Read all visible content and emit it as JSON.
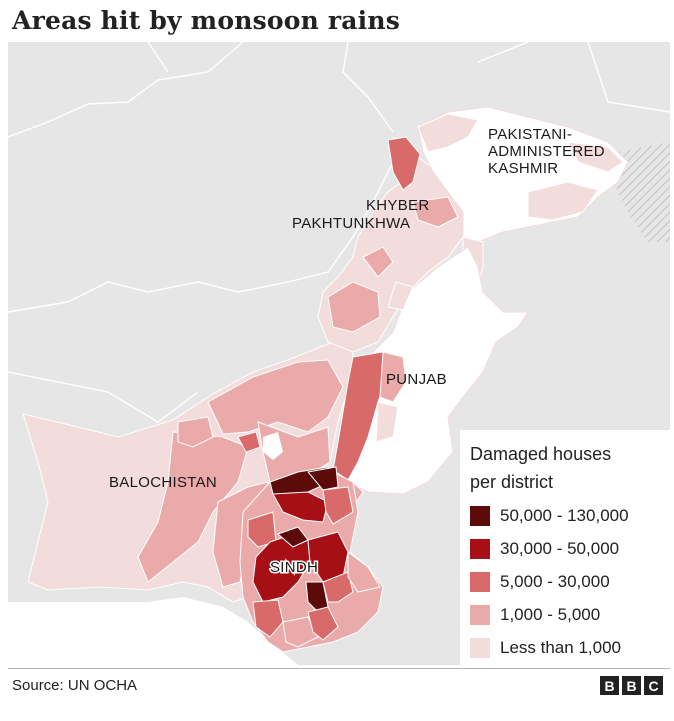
{
  "title": "Areas hit by monsoon rains",
  "regions": {
    "kashmir": [
      "PAKISTANI-",
      "ADMINISTERED",
      "KASHMIR"
    ],
    "khyber": [
      "KHYBER",
      "PAKHTUNKHWA"
    ],
    "punjab": "PUNJAB",
    "balochistan": "BALOCHISTAN",
    "sindh": "SINDH"
  },
  "legend": {
    "title_line1": "Damaged houses",
    "title_line2": "per district",
    "items": [
      {
        "label": "50,000 - 130,000",
        "color": "#5c0a0a"
      },
      {
        "label": "30,000 - 50,000",
        "color": "#a50f15"
      },
      {
        "label": "5,000 - 30,000",
        "color": "#d86a6a"
      },
      {
        "label": "1,000 - 5,000",
        "color": "#ebaaaa"
      },
      {
        "label": "Less than 1,000",
        "color": "#f3dcdc"
      }
    ]
  },
  "colors": {
    "background_land": "#e6e6e6",
    "sea": "#ffffff",
    "no_data": "#ffffff"
  },
  "source": "Source: UN OCHA",
  "logo": [
    "B",
    "B",
    "C"
  ]
}
